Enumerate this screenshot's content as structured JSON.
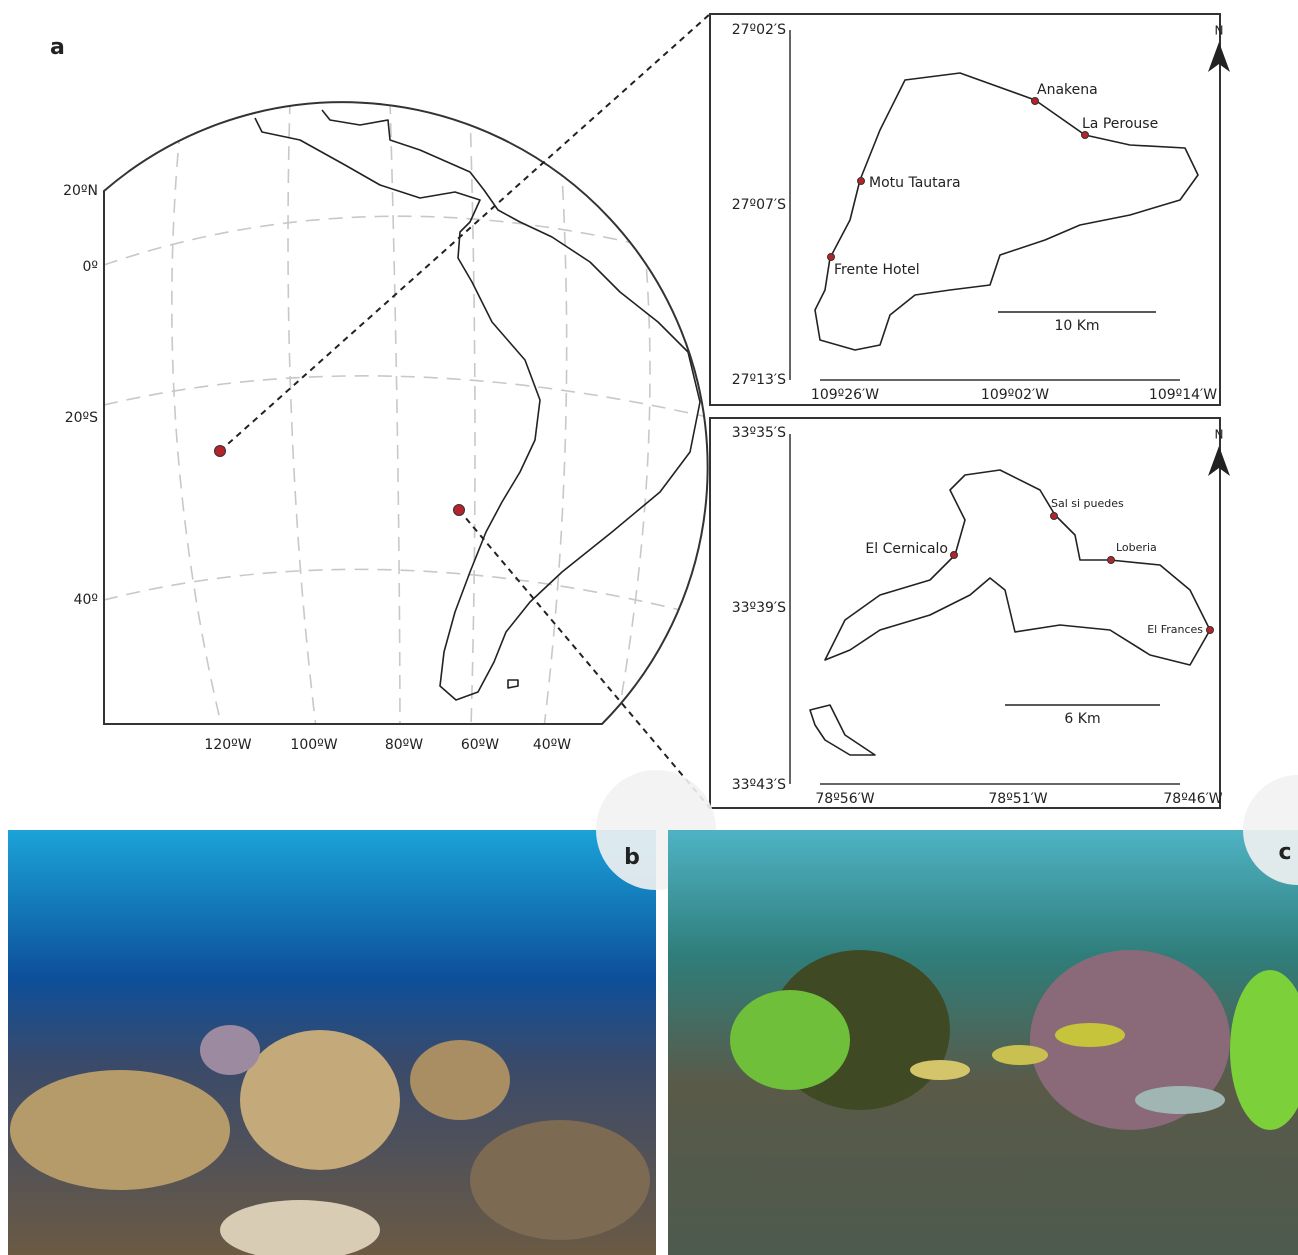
{
  "panel_a": {
    "label": "a",
    "lat_labels": [
      "20ºN",
      "0º",
      "20ºS",
      "40º"
    ],
    "lon_labels": [
      "120ºW",
      "100ºW",
      "80ºW",
      "60ºW",
      "40ºW"
    ]
  },
  "inset_easter": {
    "north": "N",
    "lat_labels": [
      "27º02′S",
      "27º07′S",
      "27º13′S"
    ],
    "lon_labels": [
      "109º26′W",
      "109º02′W",
      "109º14′W"
    ],
    "sites": [
      "Anakena",
      "La Perouse",
      "Motu Tautara",
      "Frente Hotel"
    ],
    "scale": "10 Km"
  },
  "inset_juan": {
    "north": "N",
    "lat_labels": [
      "33º35′S",
      "33º39′S",
      "33º43′S"
    ],
    "lon_labels": [
      "78º56′W",
      "78º51′W",
      "78º46′W"
    ],
    "sites": [
      "Sal si puedes",
      "El Cernicalo",
      "Loberia",
      "El Frances"
    ],
    "scale": "6 Km"
  },
  "photos": [
    {
      "label": "b"
    },
    {
      "label": "c"
    }
  ]
}
